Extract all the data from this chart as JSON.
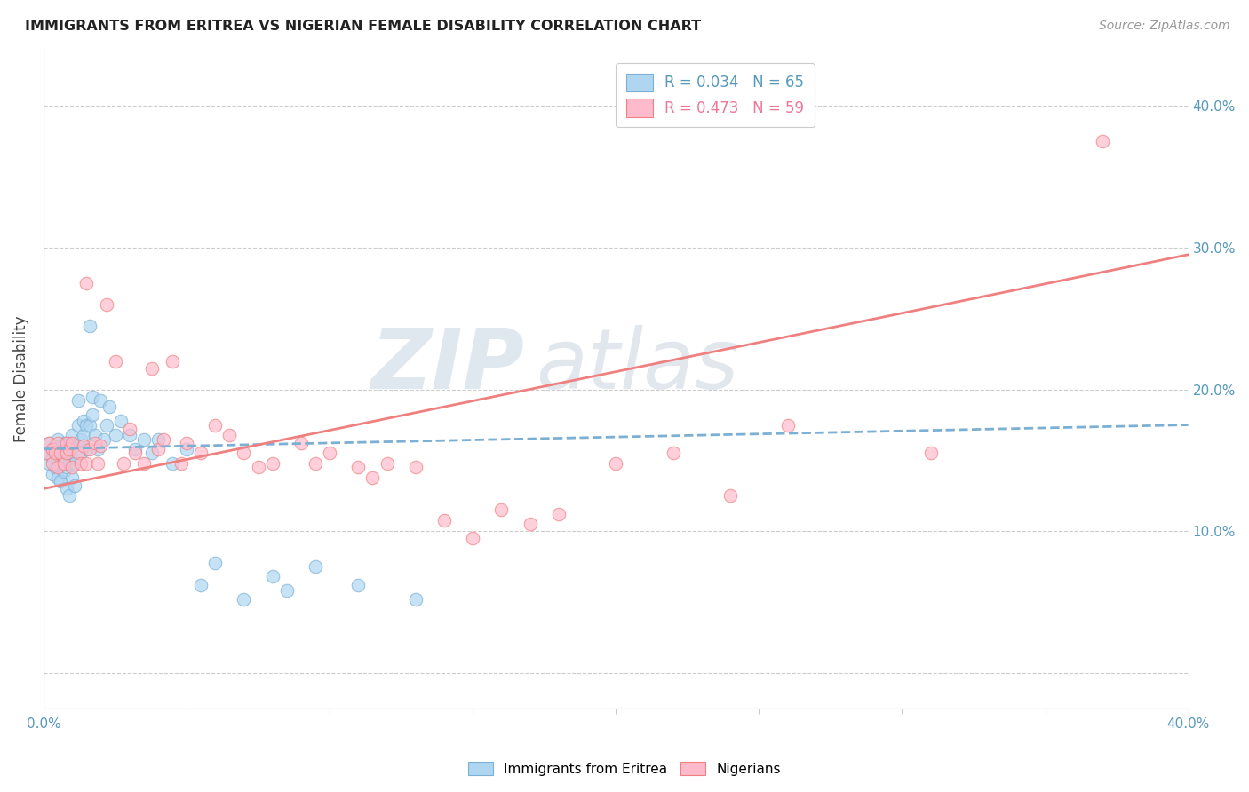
{
  "title": "IMMIGRANTS FROM ERITREA VS NIGERIAN FEMALE DISABILITY CORRELATION CHART",
  "source": "Source: ZipAtlas.com",
  "ylabel": "Female Disability",
  "ytick_labels": [
    "",
    "10.0%",
    "20.0%",
    "30.0%",
    "40.0%"
  ],
  "ytick_values": [
    0.0,
    0.1,
    0.2,
    0.3,
    0.4
  ],
  "xlim": [
    0.0,
    0.4
  ],
  "ylim": [
    -0.025,
    0.44
  ],
  "blue_color": "#7BAFD4",
  "pink_color": "#F08080",
  "blue_fill": "#AED6F1",
  "pink_fill": "#FFBBCC",
  "watermark_zip": "ZIP",
  "watermark_atlas": "atlas",
  "eritrea_x": [
    0.001,
    0.002,
    0.002,
    0.003,
    0.003,
    0.003,
    0.004,
    0.004,
    0.004,
    0.005,
    0.005,
    0.005,
    0.006,
    0.006,
    0.006,
    0.007,
    0.007,
    0.007,
    0.008,
    0.008,
    0.008,
    0.009,
    0.009,
    0.009,
    0.01,
    0.01,
    0.01,
    0.011,
    0.011,
    0.011,
    0.012,
    0.012,
    0.013,
    0.013,
    0.014,
    0.014,
    0.015,
    0.015,
    0.016,
    0.016,
    0.017,
    0.017,
    0.018,
    0.019,
    0.02,
    0.021,
    0.022,
    0.023,
    0.025,
    0.027,
    0.03,
    0.032,
    0.035,
    0.038,
    0.04,
    0.045,
    0.05,
    0.055,
    0.06,
    0.07,
    0.08,
    0.085,
    0.095,
    0.11,
    0.13
  ],
  "eritrea_y": [
    0.155,
    0.148,
    0.162,
    0.14,
    0.152,
    0.158,
    0.145,
    0.16,
    0.155,
    0.138,
    0.15,
    0.165,
    0.135,
    0.148,
    0.16,
    0.142,
    0.152,
    0.162,
    0.13,
    0.145,
    0.158,
    0.125,
    0.148,
    0.162,
    0.138,
    0.152,
    0.168,
    0.132,
    0.148,
    0.16,
    0.192,
    0.175,
    0.165,
    0.155,
    0.168,
    0.178,
    0.175,
    0.158,
    0.245,
    0.175,
    0.195,
    0.182,
    0.168,
    0.158,
    0.192,
    0.165,
    0.175,
    0.188,
    0.168,
    0.178,
    0.168,
    0.158,
    0.165,
    0.155,
    0.165,
    0.148,
    0.158,
    0.062,
    0.078,
    0.052,
    0.068,
    0.058,
    0.075,
    0.062,
    0.052
  ],
  "nigerian_x": [
    0.001,
    0.002,
    0.003,
    0.003,
    0.004,
    0.005,
    0.005,
    0.006,
    0.007,
    0.008,
    0.008,
    0.009,
    0.01,
    0.01,
    0.012,
    0.013,
    0.014,
    0.015,
    0.015,
    0.016,
    0.018,
    0.019,
    0.02,
    0.022,
    0.025,
    0.028,
    0.03,
    0.032,
    0.035,
    0.038,
    0.04,
    0.042,
    0.045,
    0.048,
    0.05,
    0.055,
    0.06,
    0.065,
    0.07,
    0.075,
    0.08,
    0.09,
    0.095,
    0.1,
    0.11,
    0.115,
    0.12,
    0.13,
    0.14,
    0.15,
    0.16,
    0.17,
    0.18,
    0.2,
    0.22,
    0.24,
    0.26,
    0.31,
    0.37
  ],
  "nigerian_y": [
    0.155,
    0.162,
    0.148,
    0.158,
    0.155,
    0.145,
    0.162,
    0.155,
    0.148,
    0.155,
    0.162,
    0.158,
    0.145,
    0.162,
    0.155,
    0.148,
    0.16,
    0.275,
    0.148,
    0.158,
    0.162,
    0.148,
    0.16,
    0.26,
    0.22,
    0.148,
    0.172,
    0.155,
    0.148,
    0.215,
    0.158,
    0.165,
    0.22,
    0.148,
    0.162,
    0.155,
    0.175,
    0.168,
    0.155,
    0.145,
    0.148,
    0.162,
    0.148,
    0.155,
    0.145,
    0.138,
    0.148,
    0.145,
    0.108,
    0.095,
    0.115,
    0.105,
    0.112,
    0.148,
    0.155,
    0.125,
    0.175,
    0.155,
    0.375
  ],
  "pink_line_x0": 0.0,
  "pink_line_y0": 0.13,
  "pink_line_x1": 0.4,
  "pink_line_y1": 0.295,
  "blue_line_x0": 0.0,
  "blue_line_y0": 0.158,
  "blue_line_x1": 0.4,
  "blue_line_y1": 0.175
}
